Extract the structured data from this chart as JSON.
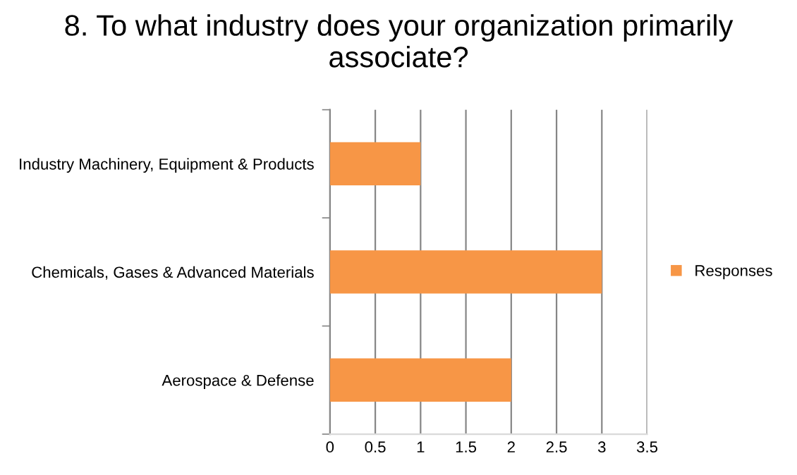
{
  "chart_data": {
    "type": "bar",
    "orientation": "horizontal",
    "title": "8. To what industry does your organization primarily associate?",
    "categories": [
      "Industry Machinery, Equipment & Products",
      "Chemicals, Gases & Advanced Materials",
      "Aerospace & Defense"
    ],
    "series": [
      {
        "name": "Responses",
        "color": "#f79646",
        "values": [
          1,
          3,
          2
        ]
      }
    ],
    "xlim": [
      0,
      3.5
    ],
    "xticks": [
      0,
      0.5,
      1,
      1.5,
      2,
      2.5,
      3,
      3.5
    ],
    "grid": "x",
    "legend": "right"
  }
}
